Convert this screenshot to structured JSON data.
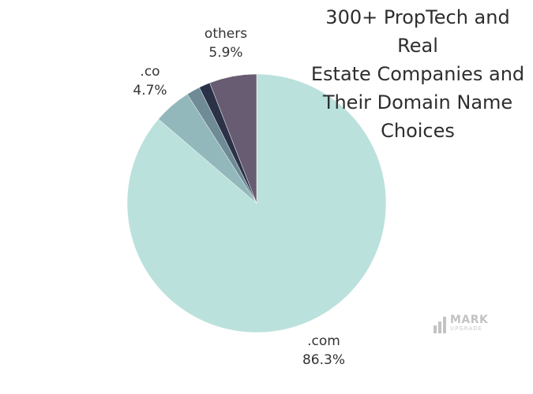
{
  "chart_data": {
    "type": "pie",
    "title_lines": [
      "300+ PropTech and Real",
      "Estate Companies and",
      "Their Domain Name",
      "Choices"
    ],
    "slices": [
      {
        "label": ".com",
        "value": 86.3,
        "color": "#bbe1dc",
        "label_text": "86.3%"
      },
      {
        "label": ".co",
        "value": 4.7,
        "color": "#93b8bb",
        "label_text": "4.7%"
      },
      {
        "label": "",
        "value": 1.7,
        "color": "#6e8b96",
        "label_text": ""
      },
      {
        "label": "",
        "value": 1.4,
        "color": "#2b3248",
        "label_text": ""
      },
      {
        "label": "others",
        "value": 5.9,
        "color": "#685c72",
        "label_text": "5.9%"
      }
    ],
    "start": "top",
    "direction": "clockwise"
  },
  "watermark": {
    "name": "MARK",
    "sub": "UPGRADE",
    "color": "#c3c3c3"
  }
}
